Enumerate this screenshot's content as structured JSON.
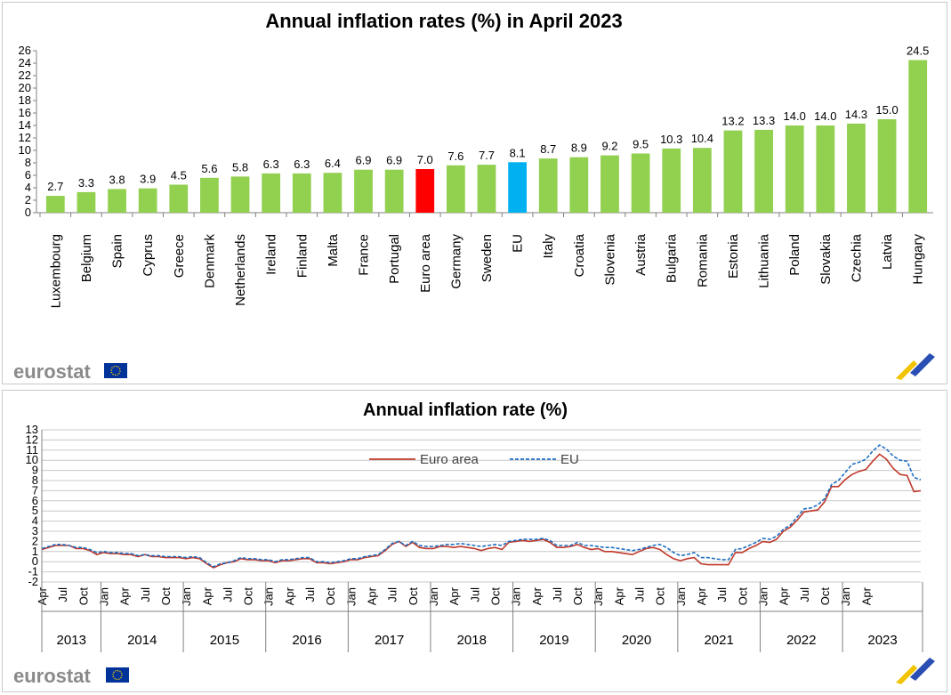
{
  "chart_data": [
    {
      "type": "bar",
      "title": "Annual inflation rates (%) in April 2023",
      "xlabel": "",
      "ylabel": "",
      "ylim": [
        0,
        26
      ],
      "yticks": [
        "0",
        "2",
        "4",
        "6",
        "8",
        "10",
        "12",
        "14",
        "16",
        "18",
        "20",
        "22",
        "24",
        "26"
      ],
      "categories": [
        "Luxembourg",
        "Belgium",
        "Spain",
        "Cyprus",
        "Greece",
        "Denmark",
        "Netherlands",
        "Ireland",
        "Finland",
        "Malta",
        "France",
        "Portugal",
        "Euro area",
        "Germany",
        "Sweden",
        "EU",
        "Italy",
        "Croatia",
        "Slovenia",
        "Austria",
        "Bulgaria",
        "Romania",
        "Estonia",
        "Lithuania",
        "Poland",
        "Slovakia",
        "Czechia",
        "Latvia",
        "Hungary"
      ],
      "values": [
        2.7,
        3.3,
        3.8,
        3.9,
        4.5,
        5.6,
        5.8,
        6.3,
        6.3,
        6.4,
        6.9,
        6.9,
        7.0,
        7.6,
        7.7,
        8.1,
        8.7,
        8.9,
        9.2,
        9.5,
        10.3,
        10.4,
        13.2,
        13.3,
        14.0,
        14.0,
        14.3,
        15.0,
        24.5
      ],
      "value_labels": [
        "2.7",
        "3.3",
        "3.8",
        "3.9",
        "4.5",
        "5.6",
        "5.8",
        "6.3",
        "6.3",
        "6.4",
        "6.9",
        "6.9",
        "7.0",
        "7.6",
        "7.7",
        "8.1",
        "8.7",
        "8.9",
        "9.2",
        "9.5",
        "10.3",
        "10.4",
        "13.2",
        "13.3",
        "14.0",
        "14.0",
        "14.3",
        "15.0",
        "24.5"
      ],
      "colors": {
        "default": "#92d050",
        "Euro area": "#ff0000",
        "EU": "#00b0f0"
      },
      "grid": false,
      "legend": "none"
    },
    {
      "type": "line",
      "title": "Annual inflation rate (%)",
      "xlabel": "",
      "ylabel": "",
      "ylim": [
        -2,
        13
      ],
      "yticks": [
        "-2",
        "-1",
        "0",
        "1",
        "2",
        "3",
        "4",
        "5",
        "6",
        "7",
        "8",
        "9",
        "10",
        "11",
        "12",
        "13"
      ],
      "x_start": "Apr 2013",
      "x_end": "Apr 2023",
      "x_tick_labels": [
        "Apr",
        "Jul",
        "Oct",
        "Jan",
        "Apr",
        "Jul",
        "Oct",
        "Jan",
        "Apr",
        "Jul",
        "Oct",
        "Jan",
        "Apr",
        "Jul",
        "Oct",
        "Jan",
        "Apr",
        "Jul",
        "Oct",
        "Jan",
        "Apr",
        "Jul",
        "Oct",
        "Jan",
        "Apr",
        "Jul",
        "Oct",
        "Jan",
        "Apr",
        "Jul",
        "Oct",
        "Jan",
        "Apr",
        "Jul",
        "Oct",
        "Jan",
        "Apr",
        "Jul",
        "Oct",
        "Jan",
        "Apr"
      ],
      "years": [
        "2013",
        "2014",
        "2015",
        "2016",
        "2017",
        "2018",
        "2019",
        "2020",
        "2021",
        "2022",
        "2023"
      ],
      "grid": true,
      "legend": "top-center",
      "series": [
        {
          "name": "Euro area",
          "color": "#c0392b",
          "dash": "solid",
          "values": [
            1.2,
            1.4,
            1.6,
            1.6,
            1.6,
            1.3,
            1.3,
            1.1,
            0.7,
            0.9,
            0.8,
            0.8,
            0.7,
            0.7,
            0.5,
            0.7,
            0.5,
            0.5,
            0.4,
            0.4,
            0.4,
            0.3,
            0.4,
            0.3,
            -0.2,
            -0.6,
            -0.3,
            -0.1,
            0.0,
            0.3,
            0.2,
            0.2,
            0.1,
            0.1,
            -0.1,
            0.1,
            0.1,
            0.2,
            0.3,
            0.3,
            -0.1,
            -0.1,
            -0.2,
            -0.1,
            0.0,
            0.2,
            0.2,
            0.4,
            0.5,
            0.6,
            1.1,
            1.7,
            2.0,
            1.5,
            1.9,
            1.4,
            1.3,
            1.3,
            1.5,
            1.5,
            1.4,
            1.5,
            1.4,
            1.3,
            1.1,
            1.3,
            1.4,
            1.2,
            1.9,
            2.0,
            2.1,
            2.0,
            2.1,
            2.2,
            1.9,
            1.4,
            1.4,
            1.5,
            1.7,
            1.4,
            1.2,
            1.3,
            1.0,
            1.0,
            0.9,
            0.8,
            0.7,
            1.0,
            1.3,
            1.4,
            1.2,
            0.7,
            0.3,
            0.1,
            0.3,
            0.4,
            -0.2,
            -0.3,
            -0.3,
            -0.3,
            -0.3,
            0.9,
            0.9,
            1.3,
            1.6,
            2.0,
            1.9,
            2.2,
            3.0,
            3.4,
            4.1,
            4.9,
            5.0,
            5.1,
            5.9,
            7.4,
            7.4,
            8.1,
            8.6,
            8.9,
            9.1,
            9.9,
            10.6,
            10.1,
            9.2,
            8.6,
            8.5,
            6.9,
            7.0
          ]
        },
        {
          "name": "EU",
          "color": "#1f6fc2",
          "dash": "dashed",
          "values": [
            1.3,
            1.5,
            1.7,
            1.7,
            1.6,
            1.4,
            1.4,
            1.2,
            0.9,
            1.0,
            0.9,
            0.9,
            0.8,
            0.8,
            0.6,
            0.7,
            0.6,
            0.6,
            0.5,
            0.5,
            0.5,
            0.4,
            0.5,
            0.4,
            -0.1,
            -0.5,
            -0.2,
            -0.1,
            0.1,
            0.4,
            0.3,
            0.3,
            0.2,
            0.2,
            0.0,
            0.2,
            0.2,
            0.3,
            0.4,
            0.4,
            0.0,
            0.0,
            -0.1,
            0.0,
            0.1,
            0.3,
            0.3,
            0.5,
            0.6,
            0.7,
            1.2,
            1.8,
            2.0,
            1.6,
            2.0,
            1.6,
            1.5,
            1.5,
            1.6,
            1.7,
            1.7,
            1.8,
            1.7,
            1.6,
            1.5,
            1.6,
            1.7,
            1.6,
            2.0,
            2.1,
            2.2,
            2.2,
            2.2,
            2.3,
            2.1,
            1.6,
            1.6,
            1.6,
            1.9,
            1.6,
            1.6,
            1.5,
            1.4,
            1.4,
            1.3,
            1.2,
            1.1,
            1.2,
            1.4,
            1.6,
            1.7,
            1.4,
            0.9,
            0.6,
            0.7,
            0.9,
            0.4,
            0.4,
            0.3,
            0.2,
            0.2,
            1.2,
            1.3,
            1.6,
            1.9,
            2.3,
            2.2,
            2.5,
            3.2,
            3.6,
            4.4,
            5.2,
            5.3,
            5.6,
            6.2,
            7.6,
            8.0,
            8.8,
            9.6,
            9.8,
            10.1,
            10.9,
            11.5,
            11.1,
            10.4,
            10.0,
            9.9,
            8.3,
            8.1
          ]
        }
      ]
    }
  ],
  "branding": {
    "logo_text": "eurostat",
    "flag_color": "#003399",
    "star_color": "#ffcc00"
  }
}
